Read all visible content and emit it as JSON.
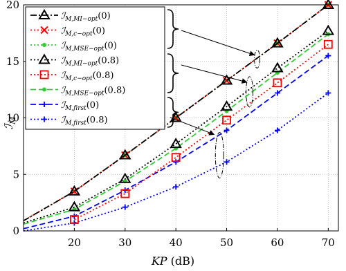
{
  "chart_data": {
    "type": "line",
    "xlabel": "KP (dB)",
    "ylabel": "ℐM",
    "xlim": [
      10,
      72
    ],
    "ylim": [
      0,
      20
    ],
    "xticks": [
      20,
      30,
      40,
      50,
      60,
      70
    ],
    "yticks": [
      0,
      5,
      10,
      15,
      20
    ],
    "grid": "dotted",
    "legend_position": "top-left",
    "series": [
      {
        "name": "ℐM,MI−opt(0)",
        "color": "#000000",
        "dash": "dashdot",
        "marker": "triangle",
        "x": [
          10,
          20,
          30,
          40,
          50,
          60,
          70
        ],
        "y": [
          0.9,
          3.5,
          6.7,
          10.0,
          13.3,
          16.6,
          20.0
        ]
      },
      {
        "name": "ℐM,c−opt(0)",
        "color": "#ff0000",
        "dash": "dotted",
        "marker": "x",
        "x": [
          10,
          20,
          30,
          40,
          50,
          60,
          70
        ],
        "y": [
          0.9,
          3.5,
          6.7,
          10.0,
          13.3,
          16.6,
          20.0
        ]
      },
      {
        "name": "ℐM,MSE−opt(0)",
        "color": "#33cc33",
        "dash": "dotted",
        "marker": "dot",
        "x": [
          10,
          20,
          30,
          40,
          50,
          60,
          70
        ],
        "y": [
          0.9,
          3.5,
          6.7,
          10.0,
          13.3,
          16.6,
          20.0
        ]
      },
      {
        "name": "ℐM,MI−opt(0.8)",
        "color": "#000000",
        "dash": "dotted",
        "marker": "triangle",
        "x": [
          10,
          20,
          30,
          40,
          50,
          60,
          70
        ],
        "y": [
          0.7,
          2.1,
          4.6,
          7.7,
          11.0,
          14.4,
          17.7
        ]
      },
      {
        "name": "ℐM,c−opt(0.8)",
        "color": "#ff0000",
        "dash": "dotted",
        "marker": "square",
        "x": [
          20,
          30,
          40,
          50,
          60,
          70
        ],
        "y": [
          1.0,
          3.3,
          6.5,
          9.8,
          13.1,
          16.5
        ]
      },
      {
        "name": "ℐM,MSE−opt(0.8)",
        "color": "#33cc33",
        "dash": "dashed",
        "marker": "dot",
        "x": [
          10,
          20,
          30,
          40,
          50,
          60,
          70
        ],
        "y": [
          0.6,
          1.9,
          4.4,
          7.3,
          10.6,
          14.0,
          17.4
        ]
      },
      {
        "name": "ℐM,first(0)",
        "color": "#0000ff",
        "dash": "dashed",
        "marker": "plus",
        "x": [
          10,
          20,
          30,
          40,
          50,
          60,
          70
        ],
        "y": [
          0.2,
          1.3,
          3.6,
          6.1,
          8.9,
          12.2,
          15.5
        ]
      },
      {
        "name": "ℐM,first(0.8)",
        "color": "#0000ff",
        "dash": "dotted",
        "marker": "plus",
        "x": [
          10,
          20,
          30,
          40,
          50,
          60,
          70
        ],
        "y": [
          0.0,
          0.7,
          2.1,
          3.9,
          6.1,
          8.9,
          12.2
        ]
      }
    ]
  },
  "legend": [
    {
      "main": "ℐ",
      "sub": "M,MI−opt",
      "arg": "(0)"
    },
    {
      "main": "ℐ",
      "sub": "M,c−opt",
      "arg": "(0)"
    },
    {
      "main": "ℐ",
      "sub": "M,MSE−opt",
      "arg": "(0)"
    },
    {
      "main": "ℐ",
      "sub": "M,MI−opt",
      "arg": "(0.8)"
    },
    {
      "main": "ℐ",
      "sub": "M,c−opt",
      "arg": "(0.8)"
    },
    {
      "main": "ℐ",
      "sub": "M,MSE−opt",
      "arg": "(0.8)"
    },
    {
      "main": "ℐ",
      "sub": "M,first",
      "arg": "(0)"
    },
    {
      "main": "ℐ",
      "sub": "M,first",
      "arg": "(0.8)"
    }
  ],
  "axes_text": {
    "xlabel_var": "KP",
    "xlabel_unit": " (dB)",
    "ylabel_main": "ℐ",
    "ylabel_sub": "M"
  }
}
